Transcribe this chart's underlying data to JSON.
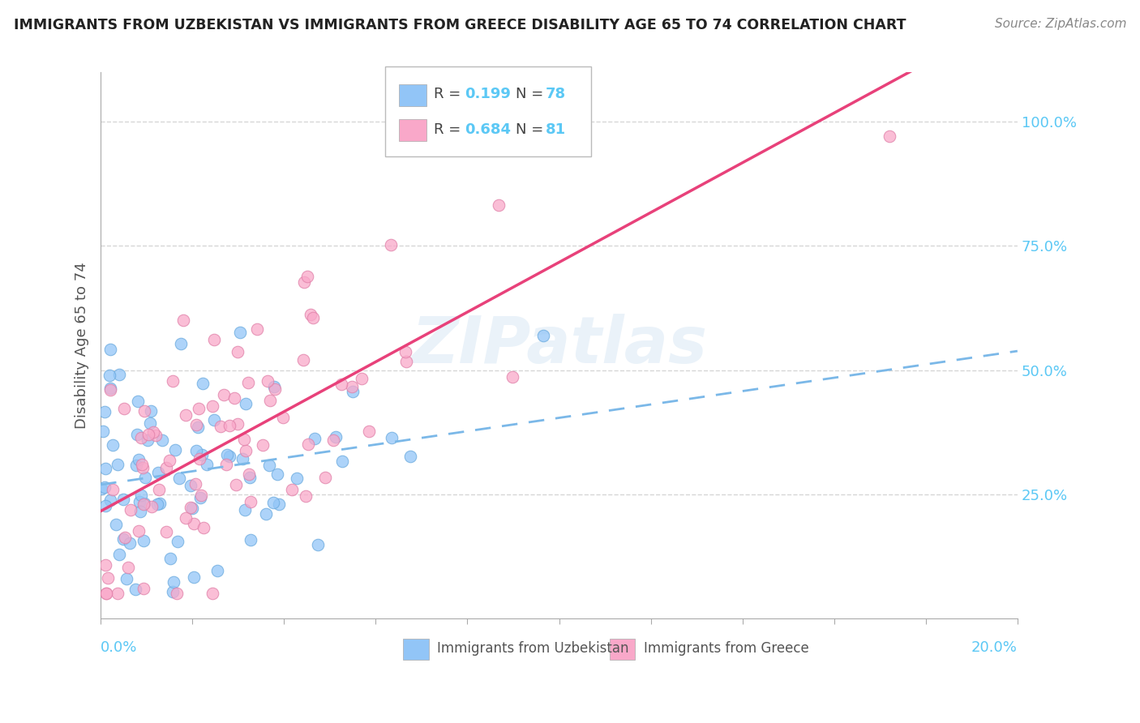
{
  "title": "IMMIGRANTS FROM UZBEKISTAN VS IMMIGRANTS FROM GREECE DISABILITY AGE 65 TO 74 CORRELATION CHART",
  "source": "Source: ZipAtlas.com",
  "ylabel": "Disability Age 65 to 74",
  "xlim": [
    0.0,
    0.2
  ],
  "ylim": [
    0.0,
    1.1
  ],
  "ytick_labels": [
    "25.0%",
    "50.0%",
    "75.0%",
    "100.0%"
  ],
  "ytick_vals": [
    0.25,
    0.5,
    0.75,
    1.0
  ],
  "color_uzbekistan": "#92C5F7",
  "color_greece": "#F9A8C9",
  "line_color_uzbekistan": "#7BB8E8",
  "line_color_greece": "#E8417A",
  "legend_R_uzbekistan": "0.199",
  "legend_N_uzbekistan": "78",
  "legend_R_greece": "0.684",
  "legend_N_greece": "81",
  "watermark": "ZIPatlas",
  "background_color": "#ffffff",
  "grid_color": "#cccccc",
  "label_color": "#5BC8F5",
  "text_color": "#555555"
}
